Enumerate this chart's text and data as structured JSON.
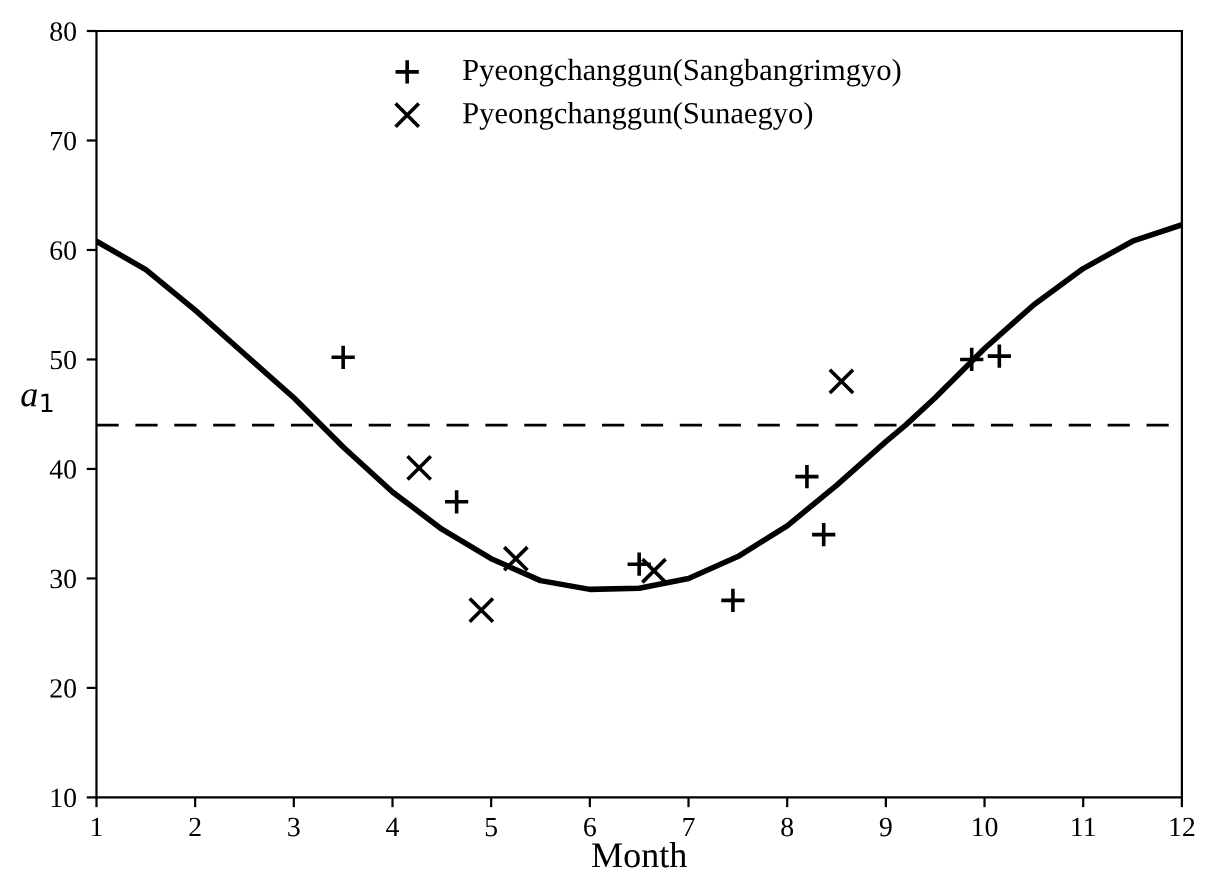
{
  "chart_data": {
    "type": "scatter",
    "xlabel": "Month",
    "ylabel": "a$_{1}$",
    "xlim": [
      1,
      12
    ],
    "xticks": [
      1,
      2,
      3,
      4,
      5,
      6,
      7,
      8,
      9,
      10,
      11,
      12
    ],
    "ylim": [
      10,
      80
    ],
    "yticks": [
      10,
      20,
      30,
      40,
      50,
      60,
      70,
      80
    ],
    "grid": false,
    "legend": "top",
    "series": [
      {
        "name": "Pyeongchanggun(Sangbangrimgyo)",
        "color": "#000000",
        "marker": "cross",
        "x": [
          3.5,
          4.65,
          6.5,
          7.45,
          8.2,
          8.37,
          9.87,
          10.15
        ],
        "values": [
          50.2,
          37,
          31.3,
          28,
          39.3,
          34,
          50,
          50.3
        ]
      },
      {
        "name": "Pyeongchanggun(Sunaegyo)",
        "color": "#000000",
        "marker": "x",
        "x": [
          4.27,
          4.9,
          5.25,
          6.65,
          8.55
        ],
        "values": [
          40.1,
          27.1,
          31.8,
          30.7,
          48
        ]
      },
      {
        "type": "line",
        "color": "#000000",
        "line_style": "solid",
        "x": [
          1,
          1.5,
          2,
          2.5,
          3,
          3.5,
          4,
          4.5,
          5,
          5.5,
          6,
          6.5,
          7,
          7.5,
          8,
          8.5,
          9,
          9.2,
          9.5,
          10,
          10.5,
          11,
          11.5,
          12
        ],
        "values": [
          60.8,
          58.2,
          54.5,
          50.5,
          46.5,
          42,
          37.9,
          34.5,
          31.8,
          29.8,
          29,
          29.1,
          30,
          32,
          34.8,
          38.5,
          42.5,
          44,
          46.5,
          51,
          55,
          58.3,
          60.8,
          62.3
        ]
      }
    ],
    "ref_lines": [
      {
        "axis": "y",
        "value": 44,
        "color": "#000000",
        "line_style": "dashed"
      }
    ]
  }
}
